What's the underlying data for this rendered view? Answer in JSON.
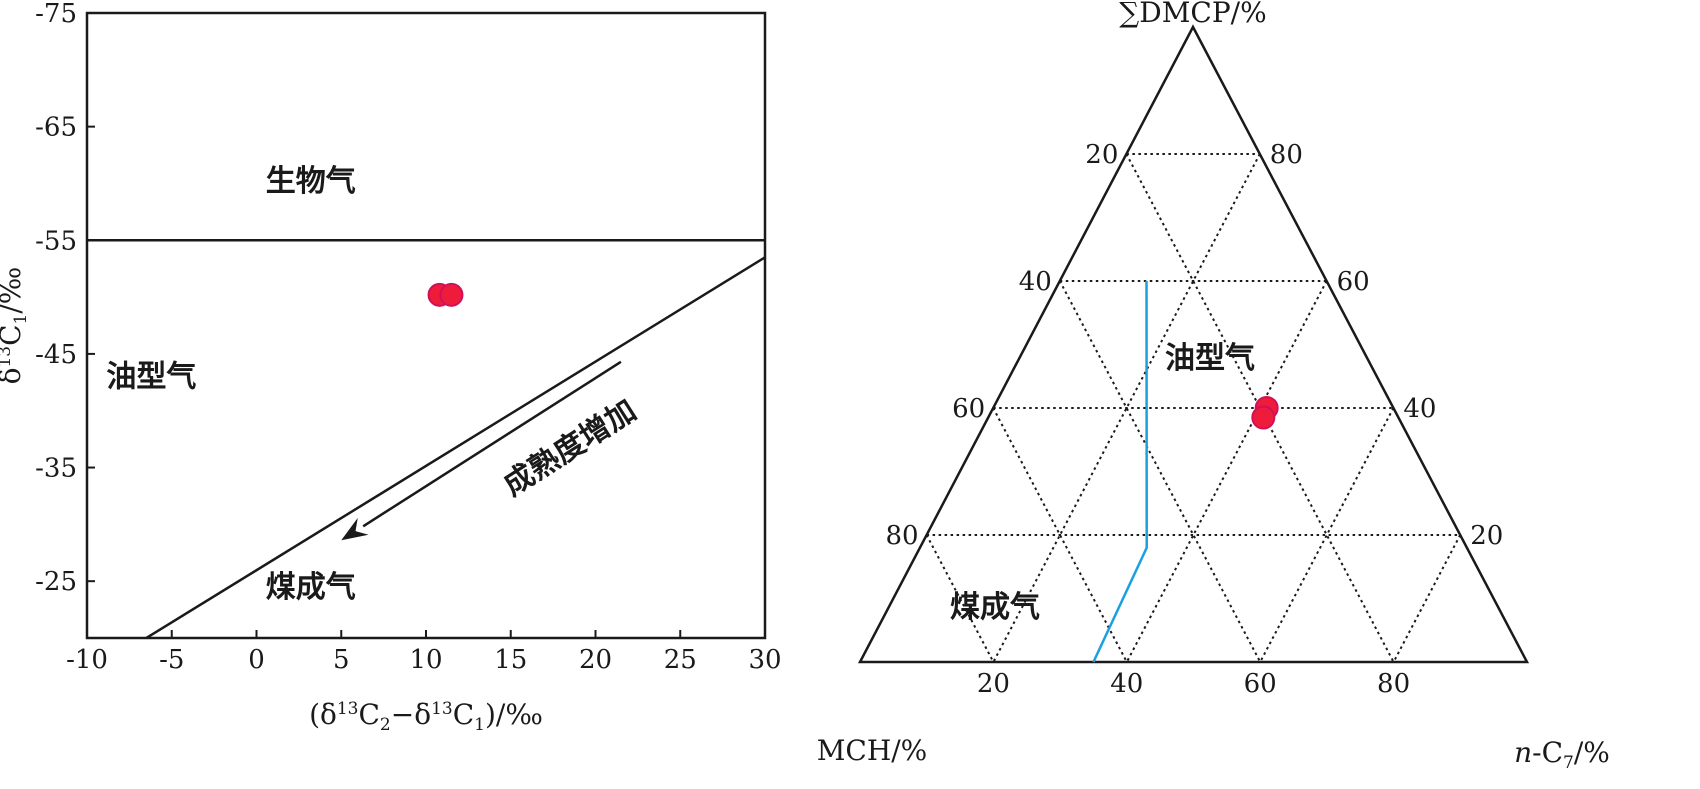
{
  "chart_data": [
    {
      "type": "scatter",
      "title": "",
      "xlabel": "(δ13C2−δ13C1)/‰",
      "ylabel": "δ13C1/‰",
      "xlim": [
        -10,
        30
      ],
      "ylim": [
        -20,
        -75
      ],
      "x_ticks": [
        "-10",
        "-5",
        "0",
        "5",
        "10",
        "15",
        "20",
        "25",
        "30"
      ],
      "y_ticks": [
        "-75",
        "-65",
        "-55",
        "-45",
        "-35",
        "-25"
      ],
      "series": [
        {
          "points": [
            {
              "x": 10.8,
              "y": -50.2
            },
            {
              "x": 11.5,
              "y": -50.2
            }
          ]
        }
      ],
      "boundaries": {
        "biogenic_limit_y": -55,
        "oil_coal_line": [
          {
            "x": -6.5,
            "y": -20
          },
          {
            "x": 30,
            "y": -53.5
          }
        ]
      },
      "regions": {
        "biogenic": "生物气",
        "oil_type": "油型气",
        "coal_type": "煤成气"
      },
      "annotation": {
        "text": "成熟度增加",
        "arrow_from": {
          "x": 21.5,
          "y": -44.3
        },
        "arrow_to": {
          "x": 5,
          "y": -28.6
        }
      },
      "grid": false,
      "marker_color": "#ee1c3a"
    },
    {
      "type": "ternary",
      "title": "",
      "axes": {
        "top": "∑DMCP/%",
        "left": "MCH/%",
        "right": "n-C7/%"
      },
      "tick_values": [
        20,
        40,
        60,
        80
      ],
      "left_edge_ticks": [
        "20",
        "40",
        "60",
        "80"
      ],
      "right_edge_ticks": [
        "80",
        "60",
        "40",
        "20"
      ],
      "bottom_edge_ticks": [
        "20",
        "40",
        "60",
        "80"
      ],
      "series": [
        {
          "points": [
            {
              "dmcp": 40,
              "mch": 19,
              "nc7": 41
            },
            {
              "dmcp": 38.5,
              "mch": 20.25,
              "nc7": 41.25
            }
          ]
        }
      ],
      "boundary_line": [
        {
          "dmcp": 0,
          "mch": 65,
          "nc7": 35
        },
        {
          "dmcp": 18,
          "mch": 48,
          "nc7": 34
        },
        {
          "dmcp": 60,
          "mch": 27,
          "nc7": 13
        }
      ],
      "regions": {
        "oil_type": "油型气",
        "coal_type": "煤成气"
      },
      "grid": true,
      "marker_color": "#ee1c3a",
      "boundary_color": "#1aa0e0"
    }
  ]
}
